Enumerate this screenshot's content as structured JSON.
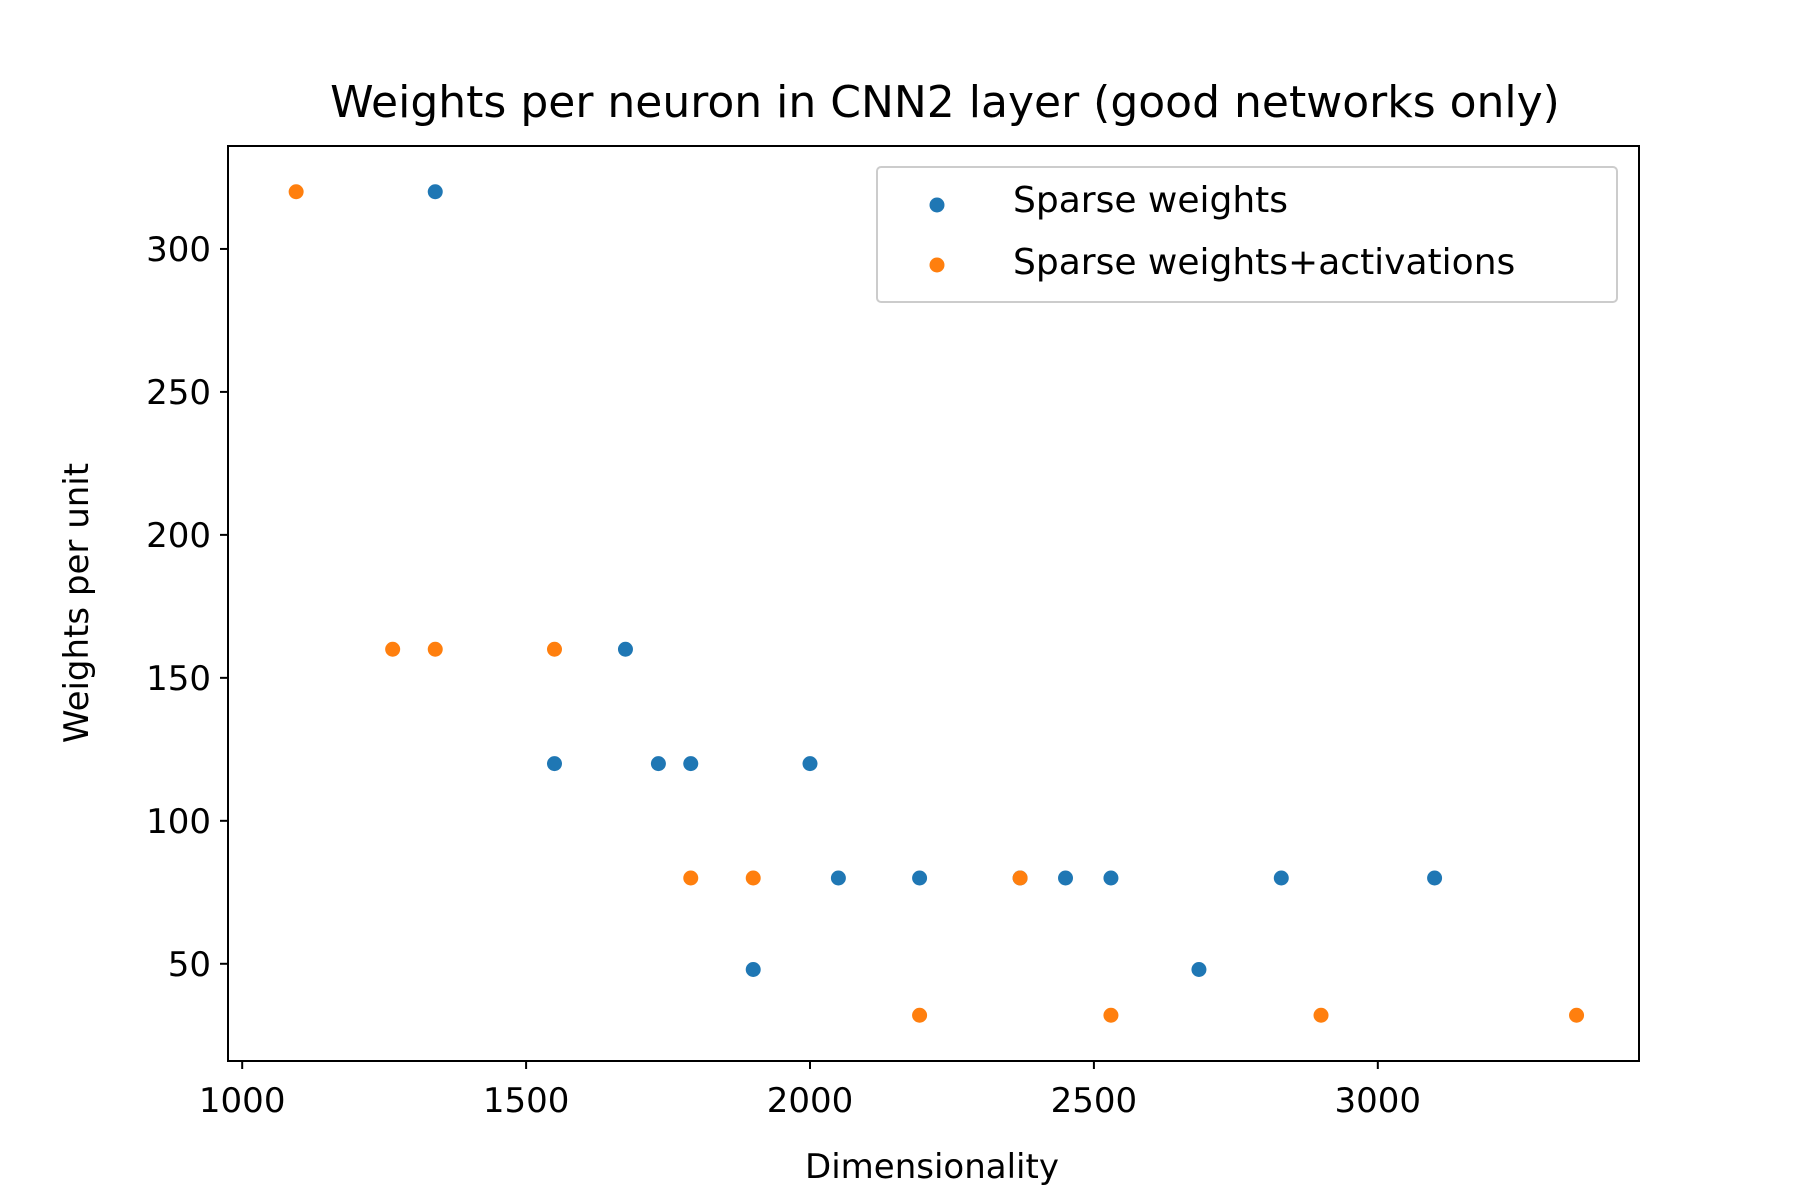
{
  "chart_data": {
    "type": "scatter",
    "title": "Weights per neuron in CNN2 layer (good networks only)",
    "xlabel": "Dimensionality",
    "ylabel": "Weights per unit",
    "xlim": [
      975,
      3460
    ],
    "ylim": [
      16,
      336
    ],
    "xticks": [
      1000,
      1500,
      2000,
      2500,
      3000
    ],
    "yticks": [
      50,
      100,
      150,
      200,
      250,
      300
    ],
    "xtick_labels": [
      "1000",
      "1500",
      "2000",
      "2500",
      "3000"
    ],
    "ytick_labels": [
      "50",
      "100",
      "150",
      "200",
      "250",
      "300"
    ],
    "legend_position": "top-right",
    "grid": false,
    "series": [
      {
        "name": "Sparse weights",
        "color": "#1f77b4",
        "points": [
          {
            "x": 1340,
            "y": 320
          },
          {
            "x": 1675,
            "y": 160
          },
          {
            "x": 1550,
            "y": 120
          },
          {
            "x": 1733,
            "y": 120
          },
          {
            "x": 1790,
            "y": 120
          },
          {
            "x": 2000,
            "y": 120
          },
          {
            "x": 2050,
            "y": 80
          },
          {
            "x": 2193,
            "y": 80
          },
          {
            "x": 2370,
            "y": 80
          },
          {
            "x": 2450,
            "y": 80
          },
          {
            "x": 2530,
            "y": 80
          },
          {
            "x": 2830,
            "y": 80
          },
          {
            "x": 3100,
            "y": 80
          },
          {
            "x": 1900,
            "y": 48
          },
          {
            "x": 2685,
            "y": 48
          }
        ]
      },
      {
        "name": "Sparse weights+activations",
        "color": "#ff7f0e",
        "points": [
          {
            "x": 1095,
            "y": 320
          },
          {
            "x": 1265,
            "y": 160
          },
          {
            "x": 1340,
            "y": 160
          },
          {
            "x": 1550,
            "y": 160
          },
          {
            "x": 1790,
            "y": 80
          },
          {
            "x": 1900,
            "y": 80
          },
          {
            "x": 2370,
            "y": 80
          },
          {
            "x": 2193,
            "y": 32
          },
          {
            "x": 2530,
            "y": 32
          },
          {
            "x": 2900,
            "y": 32
          },
          {
            "x": 3350,
            "y": 32
          }
        ]
      }
    ]
  }
}
